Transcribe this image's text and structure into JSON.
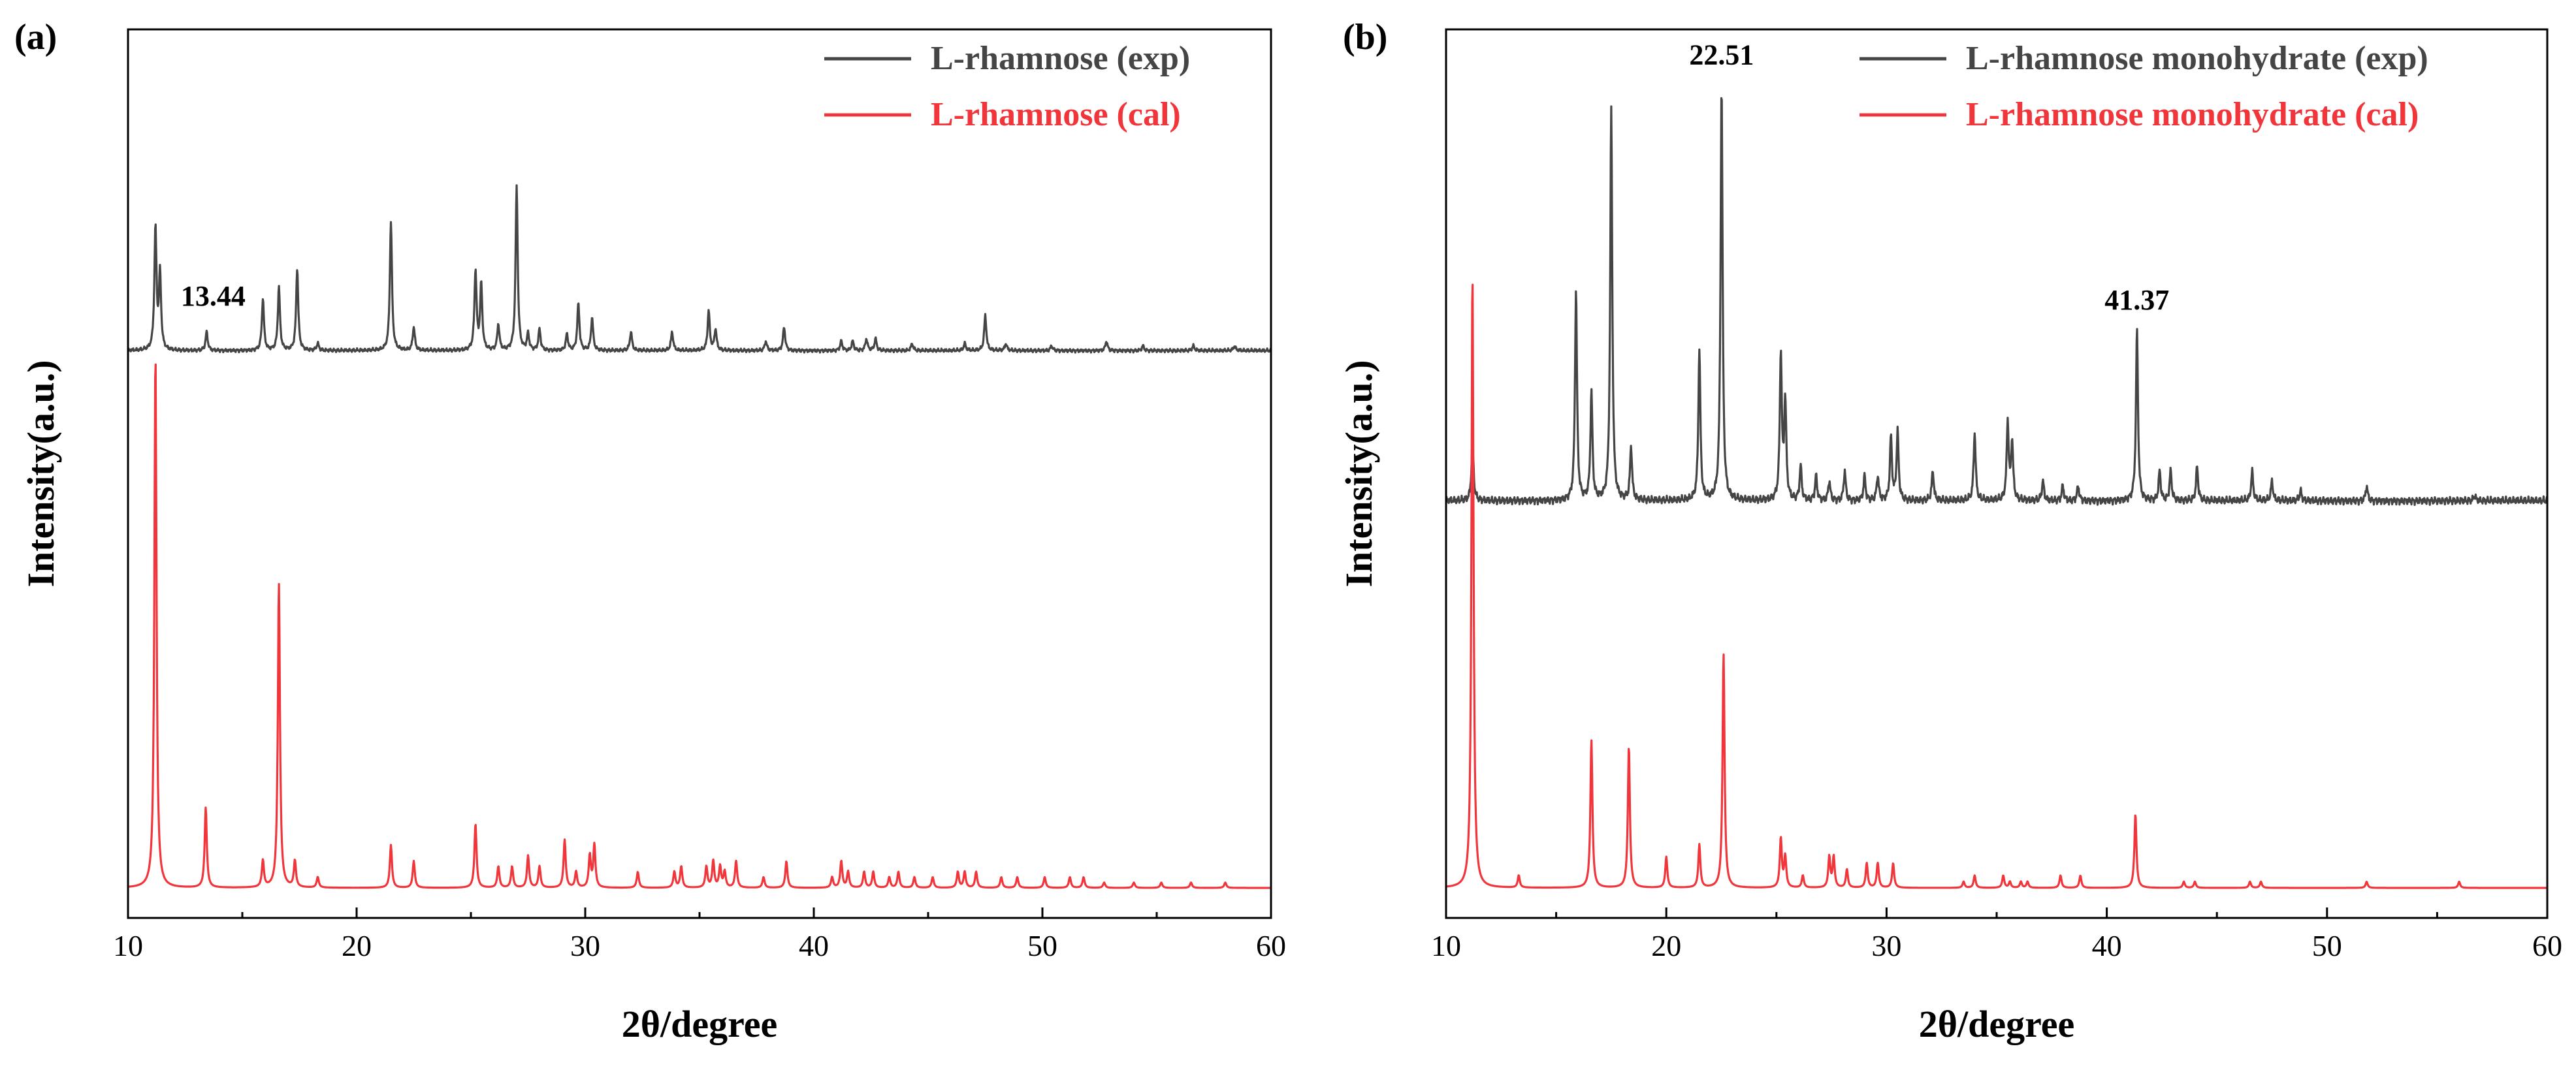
{
  "colors": {
    "exp": "#454545",
    "cal": "#f0353b",
    "axis": "#000000"
  },
  "chart_data": [
    {
      "panel": "(a)",
      "type": "line",
      "xlabel": "2θ/degree",
      "ylabel": "Intensity(a.u.)",
      "xlim": [
        10,
        60
      ],
      "xticks": [
        "10",
        "20",
        "30",
        "40",
        "50",
        "60"
      ],
      "legend_position": "top-right",
      "annotations": [
        {
          "text": "13.44",
          "x": 13.44,
          "series": "exp"
        }
      ],
      "series": [
        {
          "name": "L-rhamnose (exp)",
          "color_key": "exp",
          "role": "exp",
          "peaks": [
            [
              11.2,
              0.52
            ],
            [
              11.4,
              0.32
            ],
            [
              13.44,
              0.08
            ],
            [
              15.9,
              0.22
            ],
            [
              16.6,
              0.27
            ],
            [
              17.4,
              0.35
            ],
            [
              18.3,
              0.03
            ],
            [
              21.5,
              0.55
            ],
            [
              22.5,
              0.1
            ],
            [
              25.2,
              0.34
            ],
            [
              25.45,
              0.28
            ],
            [
              26.2,
              0.11
            ],
            [
              27.0,
              0.7
            ],
            [
              27.5,
              0.07
            ],
            [
              28.0,
              0.09
            ],
            [
              29.2,
              0.07
            ],
            [
              29.7,
              0.2
            ],
            [
              30.3,
              0.14
            ],
            [
              32.0,
              0.08
            ],
            [
              33.8,
              0.08
            ],
            [
              35.4,
              0.17
            ],
            [
              35.7,
              0.09
            ],
            [
              37.9,
              0.04
            ],
            [
              38.7,
              0.1
            ],
            [
              41.2,
              0.04
            ],
            [
              41.7,
              0.04
            ],
            [
              42.3,
              0.05
            ],
            [
              42.7,
              0.05
            ],
            [
              44.3,
              0.03
            ],
            [
              46.6,
              0.03
            ],
            [
              47.5,
              0.15
            ],
            [
              48.4,
              0.03
            ],
            [
              50.4,
              0.02
            ],
            [
              52.8,
              0.04
            ],
            [
              54.4,
              0.02
            ],
            [
              56.6,
              0.02
            ],
            [
              58.4,
              0.02
            ]
          ]
        },
        {
          "name": "L-rhamnose (cal)",
          "color_key": "cal",
          "role": "cal",
          "peaks": [
            [
              11.2,
              1.0
            ],
            [
              13.4,
              0.15
            ],
            [
              15.9,
              0.05
            ],
            [
              16.6,
              0.57
            ],
            [
              17.3,
              0.05
            ],
            [
              18.3,
              0.02
            ],
            [
              21.5,
              0.08
            ],
            [
              22.5,
              0.05
            ],
            [
              25.2,
              0.12
            ],
            [
              26.2,
              0.04
            ],
            [
              26.8,
              0.04
            ],
            [
              27.5,
              0.06
            ],
            [
              28.0,
              0.04
            ],
            [
              29.1,
              0.09
            ],
            [
              29.6,
              0.03
            ],
            [
              30.2,
              0.06
            ],
            [
              30.4,
              0.08
            ],
            [
              32.3,
              0.03
            ],
            [
              33.9,
              0.03
            ],
            [
              34.2,
              0.04
            ],
            [
              35.3,
              0.04
            ],
            [
              35.6,
              0.05
            ],
            [
              35.9,
              0.04
            ],
            [
              36.1,
              0.03
            ],
            [
              36.6,
              0.05
            ],
            [
              37.8,
              0.02
            ],
            [
              38.8,
              0.05
            ],
            [
              40.8,
              0.02
            ],
            [
              41.2,
              0.05
            ],
            [
              41.5,
              0.03
            ],
            [
              42.2,
              0.03
            ],
            [
              42.6,
              0.03
            ],
            [
              43.3,
              0.02
            ],
            [
              43.7,
              0.03
            ],
            [
              44.4,
              0.02
            ],
            [
              45.2,
              0.02
            ],
            [
              46.3,
              0.03
            ],
            [
              46.6,
              0.03
            ],
            [
              47.1,
              0.03
            ],
            [
              48.2,
              0.02
            ],
            [
              48.9,
              0.02
            ],
            [
              50.1,
              0.02
            ],
            [
              51.2,
              0.02
            ],
            [
              51.8,
              0.02
            ],
            [
              52.7,
              0.01
            ],
            [
              54.0,
              0.01
            ],
            [
              55.2,
              0.01
            ],
            [
              56.5,
              0.01
            ],
            [
              58.0,
              0.01
            ]
          ]
        }
      ]
    },
    {
      "panel": "(b)",
      "type": "line",
      "xlabel": "2θ/degree",
      "ylabel": "Intensity(a.u.)",
      "xlim": [
        10,
        60
      ],
      "xticks": [
        "10",
        "20",
        "30",
        "40",
        "50",
        "60"
      ],
      "legend_position": "top-right",
      "annotations": [
        {
          "text": "22.51",
          "x": 22.51,
          "series": "exp"
        },
        {
          "text": "41.37",
          "x": 41.37,
          "series": "exp"
        }
      ],
      "series": [
        {
          "name": "L-rhamnose monohydrate (exp)",
          "color_key": "exp",
          "role": "exp",
          "peaks": [
            [
              11.2,
              0.12
            ],
            [
              15.9,
              0.43
            ],
            [
              16.6,
              0.22
            ],
            [
              17.5,
              0.8
            ],
            [
              18.4,
              0.11
            ],
            [
              21.5,
              0.31
            ],
            [
              22.51,
              0.85
            ],
            [
              25.2,
              0.3
            ],
            [
              25.4,
              0.2
            ],
            [
              26.1,
              0.07
            ],
            [
              26.8,
              0.05
            ],
            [
              27.4,
              0.04
            ],
            [
              28.1,
              0.06
            ],
            [
              29.0,
              0.05
            ],
            [
              29.6,
              0.05
            ],
            [
              30.2,
              0.13
            ],
            [
              30.5,
              0.14
            ],
            [
              32.1,
              0.06
            ],
            [
              34.0,
              0.14
            ],
            [
              35.5,
              0.16
            ],
            [
              35.7,
              0.12
            ],
            [
              37.1,
              0.04
            ],
            [
              38.0,
              0.03
            ],
            [
              38.7,
              0.03
            ],
            [
              41.37,
              0.35
            ],
            [
              42.4,
              0.06
            ],
            [
              42.9,
              0.06
            ],
            [
              44.1,
              0.07
            ],
            [
              46.6,
              0.06
            ],
            [
              47.5,
              0.04
            ],
            [
              48.8,
              0.02
            ],
            [
              51.8,
              0.03
            ],
            [
              56.7,
              0.01
            ]
          ]
        },
        {
          "name": "L-rhamnose monohydrate (cal)",
          "color_key": "cal",
          "role": "cal",
          "peaks": [
            [
              11.2,
              1.0
            ],
            [
              13.3,
              0.02
            ],
            [
              16.6,
              0.24
            ],
            [
              18.3,
              0.23
            ],
            [
              20.0,
              0.05
            ],
            [
              21.5,
              0.07
            ],
            [
              22.6,
              0.38
            ],
            [
              25.2,
              0.08
            ],
            [
              25.4,
              0.05
            ],
            [
              26.2,
              0.02
            ],
            [
              27.4,
              0.05
            ],
            [
              27.6,
              0.05
            ],
            [
              28.2,
              0.03
            ],
            [
              29.1,
              0.04
            ],
            [
              29.6,
              0.04
            ],
            [
              30.3,
              0.04
            ],
            [
              33.5,
              0.01
            ],
            [
              34.0,
              0.02
            ],
            [
              35.3,
              0.02
            ],
            [
              35.6,
              0.01
            ],
            [
              36.1,
              0.01
            ],
            [
              36.4,
              0.01
            ],
            [
              37.9,
              0.02
            ],
            [
              38.8,
              0.02
            ],
            [
              41.3,
              0.12
            ],
            [
              43.5,
              0.01
            ],
            [
              44.0,
              0.01
            ],
            [
              46.5,
              0.01
            ],
            [
              47.0,
              0.01
            ],
            [
              51.8,
              0.01
            ],
            [
              56.0,
              0.01
            ]
          ]
        }
      ]
    }
  ]
}
